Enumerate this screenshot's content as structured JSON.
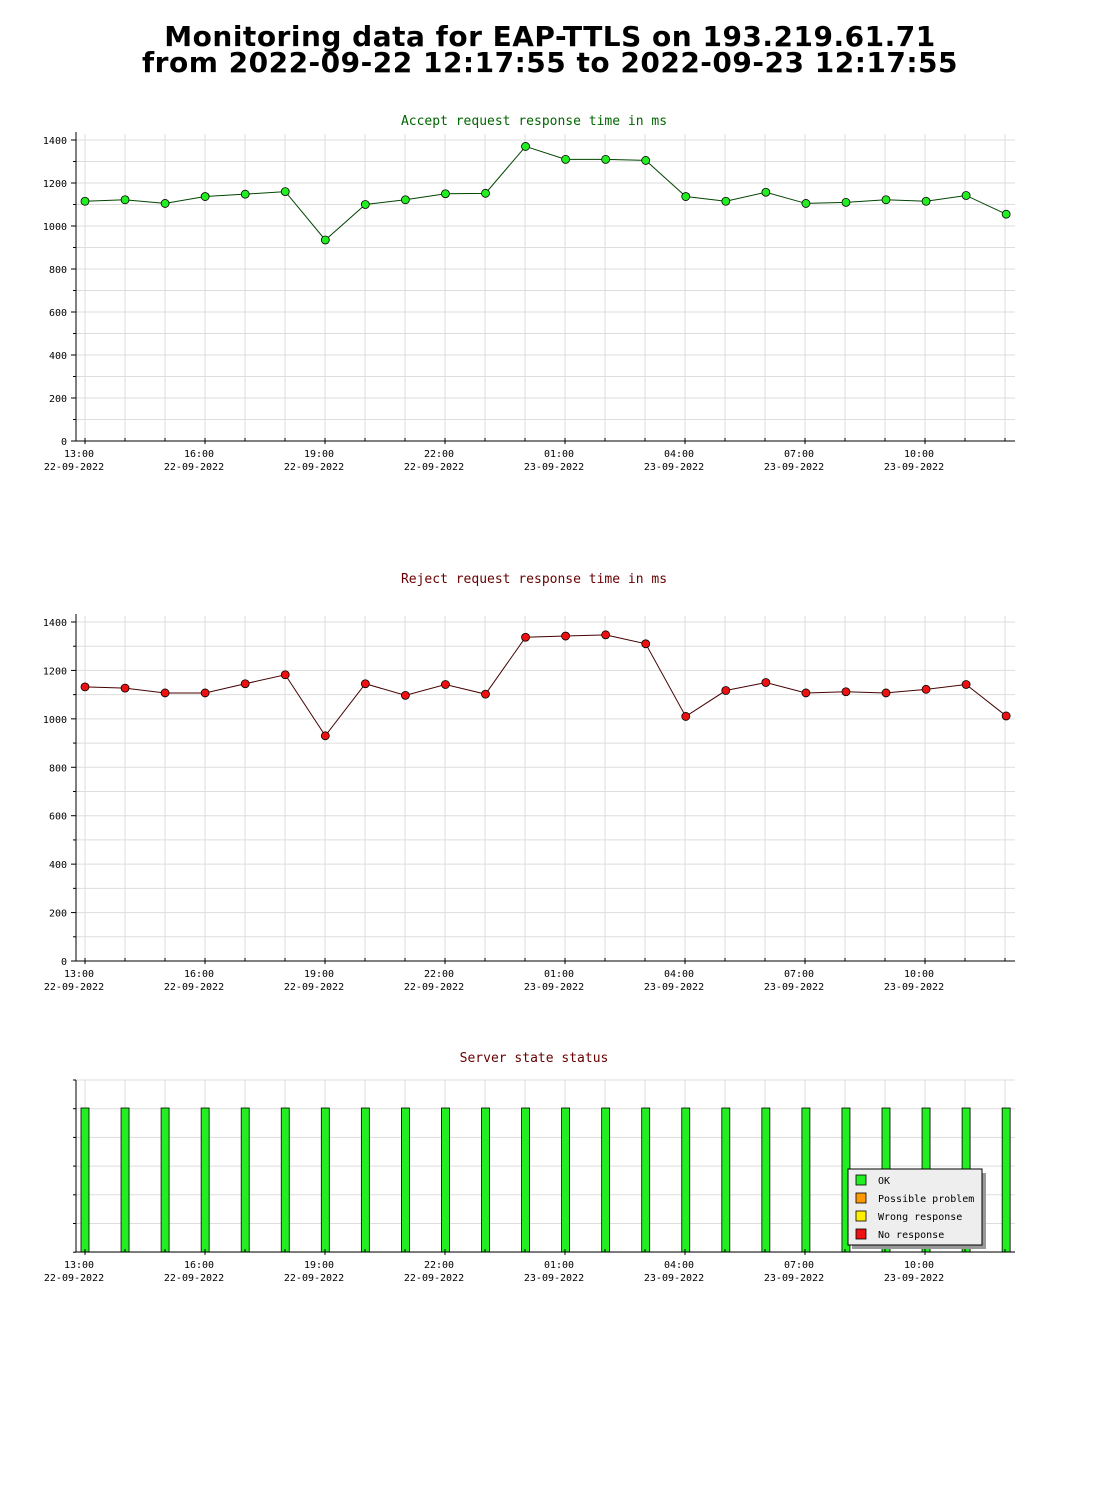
{
  "title": {
    "line1": "Monitoring data for EAP-TTLS on 193.219.61.71",
    "line2": "from 2022-09-22 12:17:55 to 2022-09-23 12:17:55"
  },
  "colors": {
    "accept_marker": "#22ee22",
    "accept_line": "#004400",
    "accept_title": "#006600",
    "reject_marker": "#ee1111",
    "reject_line": "#440000",
    "reject_title": "#660000",
    "status_title": "#660000",
    "ok_bar": "#22ee22",
    "possible_problem": "#ff9900",
    "wrong_response": "#ffee00",
    "no_response": "#ee1111",
    "grid": "#dddddd"
  },
  "chart_data": [
    {
      "type": "line",
      "title": "Accept request response time in ms",
      "ylim": [
        0,
        1400
      ],
      "yticks": [
        0,
        200,
        400,
        600,
        800,
        1000,
        1200,
        1400
      ],
      "xtick_labels": [
        {
          "time": "13:00",
          "date": "22-09-2022"
        },
        {
          "time": "16:00",
          "date": "22-09-2022"
        },
        {
          "time": "19:00",
          "date": "22-09-2022"
        },
        {
          "time": "22:00",
          "date": "22-09-2022"
        },
        {
          "time": "01:00",
          "date": "23-09-2022"
        },
        {
          "time": "04:00",
          "date": "23-09-2022"
        },
        {
          "time": "07:00",
          "date": "23-09-2022"
        },
        {
          "time": "10:00",
          "date": "23-09-2022"
        }
      ],
      "grid": true,
      "series": [
        {
          "values": [
            1115,
            1122,
            1105,
            1137,
            1148,
            1160,
            935,
            1100,
            1122,
            1150,
            1152,
            1370,
            1310,
            1310,
            1305,
            1137,
            1115,
            1157,
            1105,
            1110,
            1122,
            1115,
            1142,
            1055
          ]
        }
      ]
    },
    {
      "type": "line",
      "title": "Reject request response time in ms",
      "ylim": [
        0,
        1400
      ],
      "yticks": [
        0,
        200,
        400,
        600,
        800,
        1000,
        1200,
        1400
      ],
      "xtick_labels": [
        {
          "time": "13:00",
          "date": "22-09-2022"
        },
        {
          "time": "16:00",
          "date": "22-09-2022"
        },
        {
          "time": "19:00",
          "date": "22-09-2022"
        },
        {
          "time": "22:00",
          "date": "22-09-2022"
        },
        {
          "time": "01:00",
          "date": "23-09-2022"
        },
        {
          "time": "04:00",
          "date": "23-09-2022"
        },
        {
          "time": "07:00",
          "date": "23-09-2022"
        },
        {
          "time": "10:00",
          "date": "23-09-2022"
        }
      ],
      "grid": true,
      "series": [
        {
          "values": [
            1132,
            1127,
            1107,
            1107,
            1145,
            1182,
            930,
            1145,
            1097,
            1142,
            1102,
            1337,
            1342,
            1347,
            1310,
            1010,
            1117,
            1150,
            1107,
            1112,
            1107,
            1122,
            1142,
            1012
          ]
        }
      ]
    },
    {
      "type": "bar",
      "title": "Server state status",
      "grid": true,
      "xtick_labels": [
        {
          "time": "13:00",
          "date": "22-09-2022"
        },
        {
          "time": "16:00",
          "date": "22-09-2022"
        },
        {
          "time": "19:00",
          "date": "22-09-2022"
        },
        {
          "time": "22:00",
          "date": "22-09-2022"
        },
        {
          "time": "01:00",
          "date": "23-09-2022"
        },
        {
          "time": "04:00",
          "date": "23-09-2022"
        },
        {
          "time": "07:00",
          "date": "23-09-2022"
        },
        {
          "time": "10:00",
          "date": "23-09-2022"
        }
      ],
      "states": [
        "OK",
        "OK",
        "OK",
        "OK",
        "OK",
        "OK",
        "OK",
        "OK",
        "OK",
        "OK",
        "OK",
        "OK",
        "OK",
        "OK",
        "OK",
        "OK",
        "OK",
        "OK",
        "OK",
        "OK",
        "OK",
        "OK",
        "OK",
        "OK"
      ],
      "legend_placement": "bottom-right",
      "legend": [
        {
          "label": "OK",
          "color": "#22ee22"
        },
        {
          "label": "Possible problem",
          "color": "#ff9900"
        },
        {
          "label": "Wrong response",
          "color": "#ffee00"
        },
        {
          "label": "No response",
          "color": "#ee1111"
        }
      ]
    }
  ]
}
